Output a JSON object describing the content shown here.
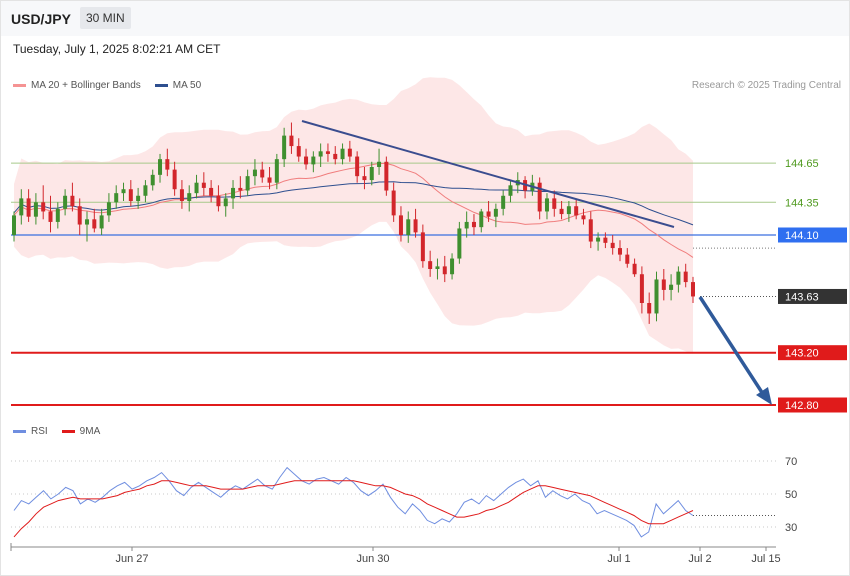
{
  "header": {
    "symbol": "USD/JPY",
    "timeframe": "30 MIN",
    "datetime": "Tuesday, July 1, 2025 8:02:21 AM CET",
    "research": "Research © 2025 Trading Central"
  },
  "legend": {
    "ma20": "MA 20 + Bollinger Bands",
    "ma50": "MA 50",
    "rsi": "RSI",
    "ma9": "9MA"
  },
  "colors": {
    "candle_up": "#3f8f2f",
    "candle_down": "#d2262b",
    "band_fill": "#fde3e3",
    "ma20": "#f07d7d",
    "ma50": "#2e4f8f",
    "pivot": "#3a6fe0",
    "support": "#e01b1b",
    "resistance": "#a7c98a",
    "trendline": "#3a4d8f",
    "arrow": "#2f5a9a",
    "rsi": "#6f8ee0",
    "rsi_ma": "#e01b1b",
    "last_price": "#333333"
  },
  "chart_data": [
    {
      "type": "candlestick",
      "title": "",
      "x_labels": [
        "Jun 27",
        "Jun 30",
        "Jul 1",
        "Jul 2",
        "Jul 15"
      ],
      "ylim": [
        142.7,
        145.2
      ],
      "candles_ohlc": [
        [
          144.1,
          144.28,
          144.05,
          144.25
        ],
        [
          144.25,
          144.45,
          144.18,
          144.38
        ],
        [
          144.38,
          144.45,
          144.2,
          144.24
        ],
        [
          144.24,
          144.42,
          144.18,
          144.35
        ],
        [
          144.35,
          144.48,
          144.22,
          144.28
        ],
        [
          144.28,
          144.4,
          144.12,
          144.2
        ],
        [
          144.2,
          144.35,
          144.15,
          144.3
        ],
        [
          144.3,
          144.45,
          144.25,
          144.4
        ],
        [
          144.4,
          144.5,
          144.28,
          144.32
        ],
        [
          144.32,
          144.38,
          144.1,
          144.18
        ],
        [
          144.18,
          144.28,
          144.05,
          144.22
        ],
        [
          144.22,
          144.3,
          144.12,
          144.15
        ],
        [
          144.15,
          144.3,
          144.1,
          144.25
        ],
        [
          144.25,
          144.42,
          144.2,
          144.35
        ],
        [
          144.35,
          144.48,
          144.3,
          144.42
        ],
        [
          144.42,
          144.5,
          144.36,
          144.45
        ],
        [
          144.45,
          144.52,
          144.32,
          144.36
        ],
        [
          144.36,
          144.46,
          144.3,
          144.4
        ],
        [
          144.4,
          144.52,
          144.35,
          144.48
        ],
        [
          144.48,
          144.6,
          144.44,
          144.56
        ],
        [
          144.56,
          144.72,
          144.5,
          144.68
        ],
        [
          144.68,
          144.76,
          144.55,
          144.6
        ],
        [
          144.6,
          144.66,
          144.4,
          144.45
        ],
        [
          144.45,
          144.52,
          144.3,
          144.36
        ],
        [
          144.36,
          144.48,
          144.28,
          144.42
        ],
        [
          144.42,
          144.56,
          144.38,
          144.5
        ],
        [
          144.5,
          144.58,
          144.4,
          144.46
        ],
        [
          144.46,
          144.52,
          144.35,
          144.4
        ],
        [
          144.4,
          144.48,
          144.28,
          144.32
        ],
        [
          144.32,
          144.42,
          144.24,
          144.38
        ],
        [
          144.38,
          144.52,
          144.3,
          144.46
        ],
        [
          144.46,
          144.55,
          144.38,
          144.44
        ],
        [
          144.44,
          144.6,
          144.4,
          144.55
        ],
        [
          144.55,
          144.68,
          144.48,
          144.6
        ],
        [
          144.6,
          144.66,
          144.5,
          144.54
        ],
        [
          144.54,
          144.62,
          144.45,
          144.5
        ],
        [
          144.5,
          144.72,
          144.45,
          144.68
        ],
        [
          144.68,
          144.92,
          144.62,
          144.86
        ],
        [
          144.86,
          144.96,
          144.72,
          144.78
        ],
        [
          144.78,
          144.84,
          144.66,
          144.7
        ],
        [
          144.7,
          144.76,
          144.6,
          144.64
        ],
        [
          144.64,
          144.74,
          144.58,
          144.7
        ],
        [
          144.7,
          144.8,
          144.62,
          144.74
        ],
        [
          144.74,
          144.8,
          144.66,
          144.72
        ],
        [
          144.72,
          144.78,
          144.64,
          144.68
        ],
        [
          144.68,
          144.8,
          144.64,
          144.76
        ],
        [
          144.76,
          144.82,
          144.66,
          144.7
        ],
        [
          144.7,
          144.74,
          144.5,
          144.55
        ],
        [
          144.55,
          144.62,
          144.45,
          144.52
        ],
        [
          144.52,
          144.66,
          144.48,
          144.62
        ],
        [
          144.62,
          144.76,
          144.56,
          144.66
        ],
        [
          144.66,
          144.7,
          144.4,
          144.44
        ],
        [
          144.44,
          144.5,
          144.2,
          144.25
        ],
        [
          144.25,
          144.32,
          144.05,
          144.1
        ],
        [
          144.1,
          144.28,
          144.04,
          144.22
        ],
        [
          144.22,
          144.3,
          144.08,
          144.12
        ],
        [
          144.12,
          144.18,
          143.85,
          143.9
        ],
        [
          143.9,
          143.98,
          143.78,
          143.84
        ],
        [
          143.84,
          143.92,
          143.76,
          143.86
        ],
        [
          143.86,
          143.94,
          143.74,
          143.8
        ],
        [
          143.8,
          143.96,
          143.76,
          143.92
        ],
        [
          143.92,
          144.2,
          143.88,
          144.15
        ],
        [
          144.15,
          144.28,
          144.08,
          144.2
        ],
        [
          144.2,
          144.26,
          144.1,
          144.16
        ],
        [
          144.16,
          144.3,
          144.12,
          144.28
        ],
        [
          144.28,
          144.36,
          144.2,
          144.24
        ],
        [
          144.24,
          144.34,
          144.16,
          144.3
        ],
        [
          144.3,
          144.44,
          144.25,
          144.4
        ],
        [
          144.4,
          144.52,
          144.35,
          144.48
        ],
        [
          144.48,
          144.58,
          144.42,
          144.52
        ],
        [
          144.52,
          144.55,
          144.38,
          144.44
        ],
        [
          144.44,
          144.56,
          144.4,
          144.5
        ],
        [
          144.5,
          144.54,
          144.22,
          144.28
        ],
        [
          144.28,
          144.42,
          144.22,
          144.38
        ],
        [
          144.38,
          144.44,
          144.24,
          144.3
        ],
        [
          144.3,
          144.36,
          144.22,
          144.26
        ],
        [
          144.26,
          144.36,
          144.2,
          144.32
        ],
        [
          144.32,
          144.38,
          144.22,
          144.25
        ],
        [
          144.25,
          144.3,
          144.18,
          144.22
        ],
        [
          144.22,
          144.28,
          144.0,
          144.05
        ],
        [
          144.05,
          144.12,
          143.98,
          144.08
        ],
        [
          144.08,
          144.12,
          144.0,
          144.04
        ],
        [
          144.04,
          144.1,
          143.95,
          144.0
        ],
        [
          144.0,
          144.06,
          143.9,
          143.95
        ],
        [
          143.95,
          144.0,
          143.85,
          143.88
        ],
        [
          143.88,
          143.92,
          143.78,
          143.8
        ],
        [
          143.8,
          143.86,
          143.5,
          143.58
        ],
        [
          143.58,
          143.66,
          143.42,
          143.5
        ],
        [
          143.5,
          143.82,
          143.44,
          143.76
        ],
        [
          143.76,
          143.84,
          143.6,
          143.68
        ],
        [
          143.68,
          143.8,
          143.6,
          143.72
        ],
        [
          143.72,
          143.86,
          143.66,
          143.82
        ],
        [
          143.82,
          143.88,
          143.7,
          143.74
        ],
        [
          143.74,
          143.78,
          143.58,
          143.63
        ]
      ],
      "levels": [
        {
          "label": "144.65",
          "value": 144.65,
          "kind": "resistance"
        },
        {
          "label": "144.35",
          "value": 144.35,
          "kind": "resistance"
        },
        {
          "label": "144.10",
          "value": 144.1,
          "kind": "pivot"
        },
        {
          "label": "143.63",
          "value": 143.63,
          "kind": "last"
        },
        {
          "label": "143.20",
          "value": 143.2,
          "kind": "support"
        },
        {
          "label": "142.80",
          "value": 142.8,
          "kind": "support"
        }
      ]
    },
    {
      "type": "line",
      "title": "RSI",
      "y_ticks": [
        "70",
        "50",
        "30"
      ],
      "ylim": [
        20,
        80
      ],
      "rsi": [
        40,
        46,
        44,
        48,
        52,
        47,
        50,
        54,
        52,
        44,
        47,
        45,
        48,
        52,
        55,
        57,
        53,
        55,
        58,
        60,
        63,
        58,
        52,
        49,
        54,
        57,
        54,
        51,
        48,
        52,
        55,
        53,
        56,
        59,
        55,
        53,
        60,
        66,
        62,
        58,
        56,
        59,
        60,
        58,
        56,
        60,
        57,
        52,
        49,
        52,
        56,
        48,
        42,
        38,
        44,
        40,
        34,
        32,
        35,
        33,
        38,
        45,
        47,
        44,
        49,
        46,
        50,
        54,
        57,
        59,
        55,
        58,
        48,
        52,
        49,
        47,
        50,
        46,
        44,
        38,
        40,
        38,
        36,
        34,
        31,
        24,
        27,
        44,
        38,
        42,
        46,
        40,
        37
      ],
      "rsi_ma": [
        24,
        29,
        33,
        38,
        42,
        44,
        46,
        47,
        48,
        47,
        47,
        47,
        47,
        48,
        49,
        51,
        52,
        53,
        55,
        56,
        58,
        58,
        57,
        56,
        55,
        55,
        55,
        54,
        53,
        53,
        53,
        53,
        54,
        55,
        55,
        55,
        56,
        57,
        58,
        58,
        58,
        58,
        58,
        58,
        58,
        58,
        58,
        57,
        56,
        55,
        55,
        54,
        52,
        50,
        49,
        47,
        44,
        42,
        40,
        38,
        36,
        36,
        37,
        38,
        40,
        41,
        43,
        45,
        48,
        51,
        53,
        55,
        55,
        54,
        53,
        52,
        51,
        50,
        49,
        47,
        45,
        43,
        41,
        39,
        37,
        34,
        32,
        32,
        32,
        34,
        36,
        38,
        40
      ]
    }
  ],
  "xaxis_labels": {
    "a": "Jun 27",
    "b": "Jun 30",
    "c": "Jul 1",
    "d": "Jul 2",
    "e": "Jul 15"
  }
}
